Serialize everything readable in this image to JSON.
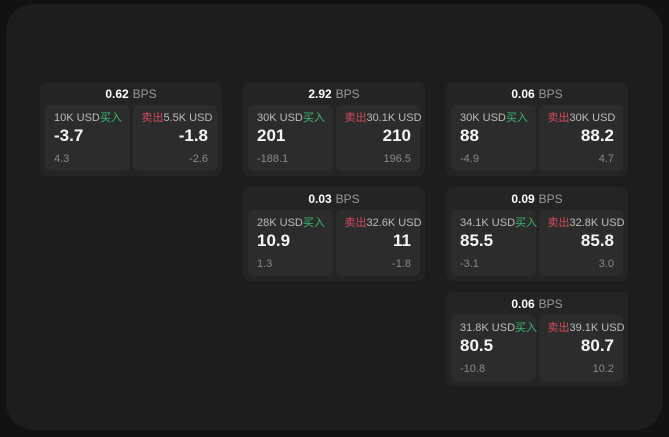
{
  "labels": {
    "bps_unit": "BPS",
    "buy": "买入",
    "sell": "卖出"
  },
  "colors": {
    "buy": "#3dba74",
    "sell": "#d24b5f",
    "background": "#121212",
    "panel": "#1d1d1d",
    "card": "#242424",
    "pane": "#2c2c2c"
  },
  "cards": [
    {
      "col": 1,
      "row": 1,
      "bps": "0.62",
      "buy": {
        "amount": "10K USD",
        "value": "-3.7",
        "sub": "4.3"
      },
      "sell": {
        "amount": "5.5K USD",
        "value": "-1.8",
        "sub": "-2.6"
      }
    },
    {
      "col": 2,
      "row": 1,
      "bps": "2.92",
      "buy": {
        "amount": "30K USD",
        "value": "201",
        "sub": "-188.1"
      },
      "sell": {
        "amount": "30.1K USD",
        "value": "210",
        "sub": "196.5"
      }
    },
    {
      "col": 3,
      "row": 1,
      "bps": "0.06",
      "buy": {
        "amount": "30K USD",
        "value": "88",
        "sub": "-4.9"
      },
      "sell": {
        "amount": "30K USD",
        "value": "88.2",
        "sub": "4.7"
      }
    },
    {
      "col": 2,
      "row": 2,
      "bps": "0.03",
      "buy": {
        "amount": "28K USD",
        "value": "10.9",
        "sub": "1.3"
      },
      "sell": {
        "amount": "32.6K USD",
        "value": "11",
        "sub": "-1.8"
      }
    },
    {
      "col": 3,
      "row": 2,
      "bps": "0.09",
      "buy": {
        "amount": "34.1K USD",
        "value": "85.5",
        "sub": "-3.1"
      },
      "sell": {
        "amount": "32.8K USD",
        "value": "85.8",
        "sub": "3.0"
      }
    },
    {
      "col": 3,
      "row": 3,
      "bps": "0.06",
      "buy": {
        "amount": "31.8K USD",
        "value": "80.5",
        "sub": "-10.8"
      },
      "sell": {
        "amount": "39.1K USD",
        "value": "80.7",
        "sub": "10.2"
      }
    }
  ]
}
